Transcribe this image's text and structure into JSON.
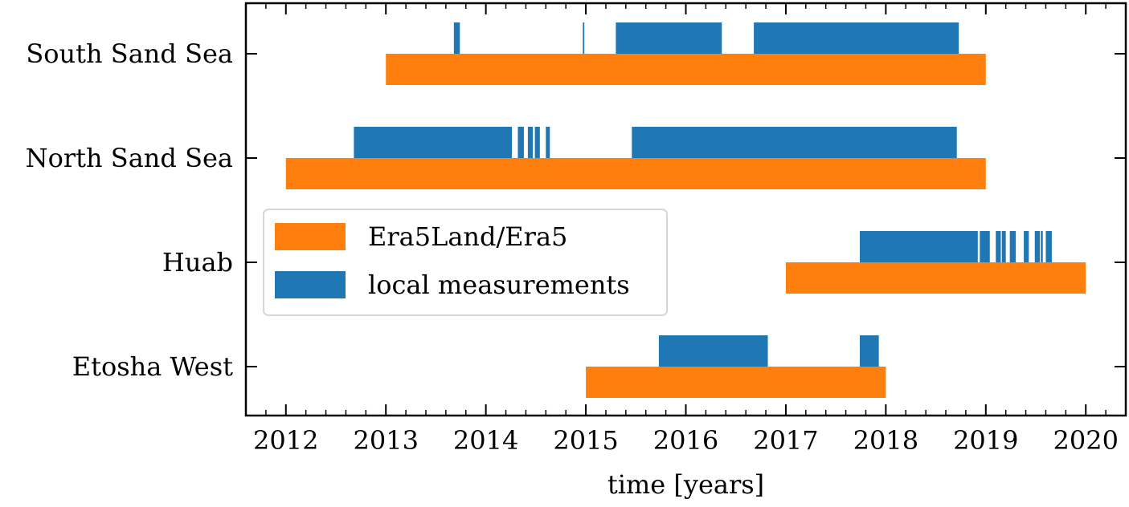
{
  "chart_data": {
    "type": "bar",
    "orientation": "horizontal-timeline",
    "xlabel": "time [years]",
    "ylabel": "",
    "title": "",
    "xlim": [
      2011.6,
      2020.4
    ],
    "x_ticks": [
      2012,
      2013,
      2014,
      2015,
      2016,
      2017,
      2018,
      2019,
      2020
    ],
    "grid": false,
    "legend_position": "center-left",
    "categories": [
      "South Sand Sea",
      "North Sand Sea",
      "Huab",
      "Etosha West"
    ],
    "series": [
      {
        "name": "Era5Land/Era5",
        "color": "#ff7f0e",
        "ranges": [
          [
            [
              2013.0,
              2019.0
            ]
          ],
          [
            [
              2012.0,
              2019.0
            ]
          ],
          [
            [
              2017.0,
              2020.0
            ]
          ],
          [
            [
              2015.0,
              2018.0
            ]
          ]
        ]
      },
      {
        "name": "local measurements",
        "color": "#1f77b4",
        "ranges": [
          [
            [
              2013.68,
              2013.74
            ],
            [
              2014.97,
              2014.985
            ],
            [
              2015.3,
              2016.36
            ],
            [
              2016.68,
              2018.73
            ]
          ],
          [
            [
              2012.68,
              2014.26
            ],
            [
              2014.32,
              2014.38
            ],
            [
              2014.42,
              2014.47
            ],
            [
              2014.49,
              2014.54
            ],
            [
              2014.6,
              2014.64
            ],
            [
              2015.46,
              2018.71
            ]
          ],
          [
            [
              2017.74,
              2018.92
            ],
            [
              2018.94,
              2019.04
            ],
            [
              2019.1,
              2019.15
            ],
            [
              2019.16,
              2019.2
            ],
            [
              2019.24,
              2019.3
            ],
            [
              2019.38,
              2019.43
            ],
            [
              2019.49,
              2019.54
            ],
            [
              2019.55,
              2019.57
            ],
            [
              2019.6,
              2019.66
            ]
          ],
          [
            [
              2015.73,
              2016.82
            ],
            [
              2017.74,
              2017.93
            ]
          ]
        ]
      }
    ]
  }
}
